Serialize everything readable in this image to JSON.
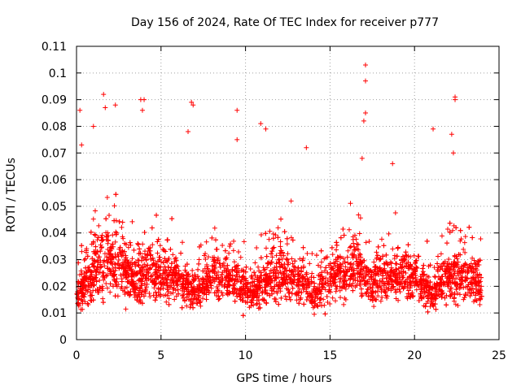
{
  "chart_data": {
    "type": "scatter",
    "title": "Day 156 of 2024, Rate Of TEC Index for receiver p777",
    "xlabel": "GPS time / hours",
    "ylabel": "ROTI / TECUs",
    "xlim": [
      0,
      25
    ],
    "ylim": [
      0,
      0.11
    ],
    "xticks": [
      0,
      5,
      10,
      15,
      20,
      25
    ],
    "xtick_labels": [
      "0",
      "5",
      "10",
      "15",
      "20",
      "25"
    ],
    "yticks": [
      0,
      0.01,
      0.02,
      0.03,
      0.04,
      0.05,
      0.06,
      0.07,
      0.08,
      0.09,
      0.1,
      0.11
    ],
    "ytick_labels": [
      "0",
      "0.01",
      "0.02",
      "0.03",
      "0.04",
      "0.05",
      "0.06",
      "0.07",
      "0.08",
      "0.09",
      "0.1",
      "0.11"
    ],
    "grid": true,
    "marker": "+",
    "color": "#ff0000",
    "data_range": [
      0,
      24
    ],
    "series": [
      {
        "name": "ROTI",
        "notable_points": [
          {
            "x": 0.2,
            "y": 0.086
          },
          {
            "x": 0.3,
            "y": 0.073
          },
          {
            "x": 1.0,
            "y": 0.08
          },
          {
            "x": 1.6,
            "y": 0.092
          },
          {
            "x": 1.7,
            "y": 0.087
          },
          {
            "x": 2.3,
            "y": 0.088
          },
          {
            "x": 3.8,
            "y": 0.09
          },
          {
            "x": 4.0,
            "y": 0.09
          },
          {
            "x": 3.9,
            "y": 0.086
          },
          {
            "x": 6.6,
            "y": 0.078
          },
          {
            "x": 6.8,
            "y": 0.089
          },
          {
            "x": 6.9,
            "y": 0.088
          },
          {
            "x": 9.5,
            "y": 0.086
          },
          {
            "x": 9.5,
            "y": 0.075
          },
          {
            "x": 10.9,
            "y": 0.081
          },
          {
            "x": 11.2,
            "y": 0.079
          },
          {
            "x": 13.6,
            "y": 0.072
          },
          {
            "x": 16.9,
            "y": 0.068
          },
          {
            "x": 17.1,
            "y": 0.103
          },
          {
            "x": 17.1,
            "y": 0.097
          },
          {
            "x": 17.1,
            "y": 0.085
          },
          {
            "x": 17.0,
            "y": 0.082
          },
          {
            "x": 18.7,
            "y": 0.066
          },
          {
            "x": 21.1,
            "y": 0.079
          },
          {
            "x": 22.2,
            "y": 0.077
          },
          {
            "x": 22.4,
            "y": 0.091
          },
          {
            "x": 22.4,
            "y": 0.09
          },
          {
            "x": 22.3,
            "y": 0.07
          }
        ],
        "typical_band": [
          0.008,
          0.035
        ]
      }
    ]
  }
}
